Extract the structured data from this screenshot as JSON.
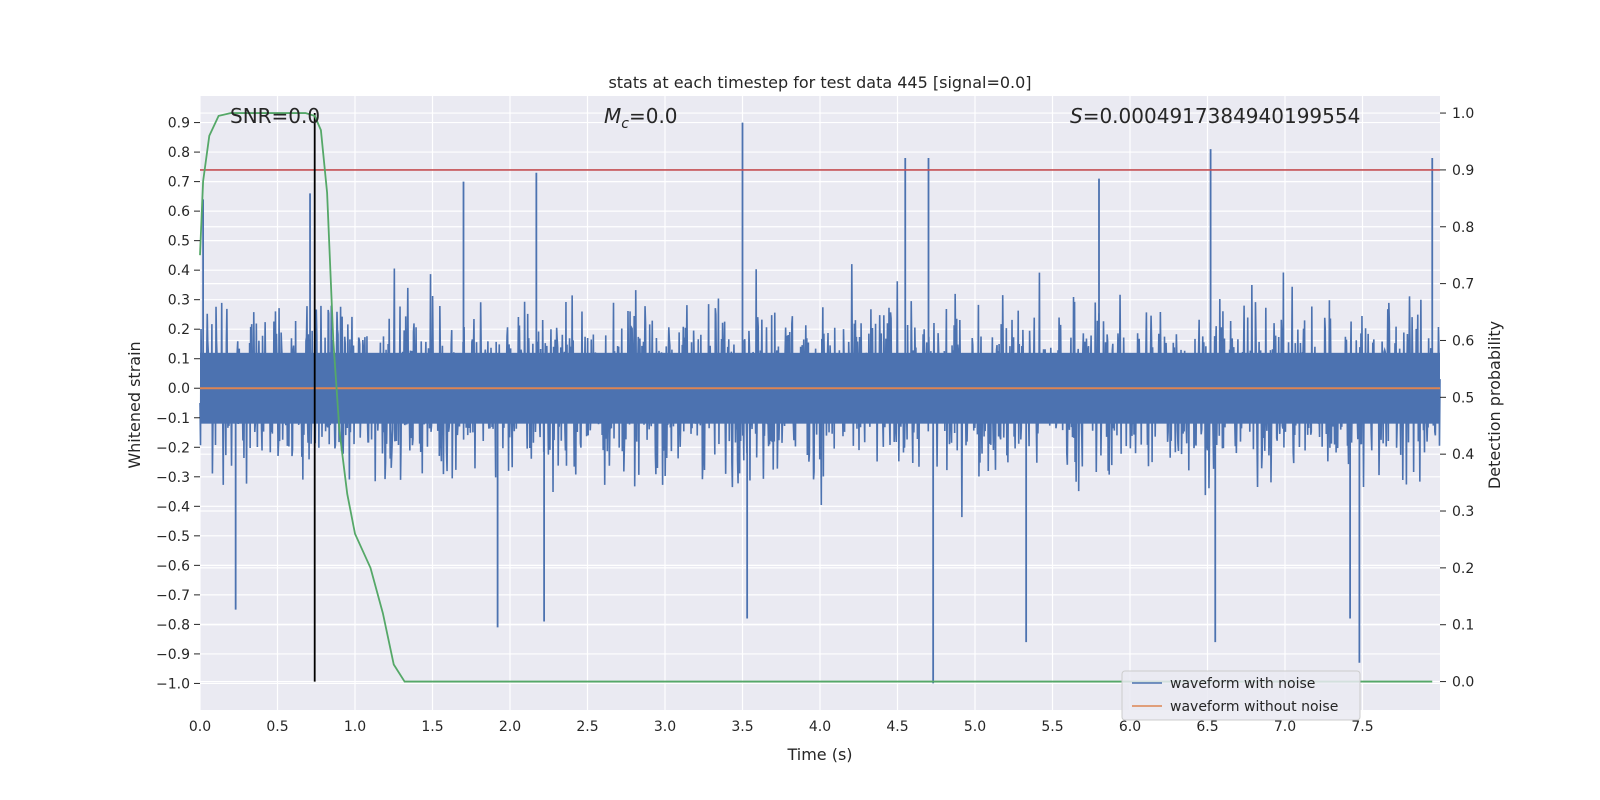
{
  "chart_data": {
    "type": "line",
    "title": "stats at each timestep for test data 445 [signal=0.0]",
    "xlabel": "Time (s)",
    "ylabel_left": "Whitened strain",
    "ylabel_right": "Detection probability",
    "xlim": [
      0.0,
      8.0
    ],
    "ylim_left": [
      -1.09,
      0.99
    ],
    "ylim_right": [
      -0.05,
      1.03
    ],
    "grid": true,
    "x_ticks": [
      "0.0",
      "0.5",
      "1.0",
      "1.5",
      "2.0",
      "2.5",
      "3.0",
      "3.5",
      "4.0",
      "4.5",
      "5.0",
      "5.5",
      "6.0",
      "6.5",
      "7.0",
      "7.5"
    ],
    "y_left_ticks": [
      "0.9",
      "0.8",
      "0.7",
      "0.6",
      "0.5",
      "0.4",
      "0.3",
      "0.2",
      "0.1",
      "0.0",
      "−0.1",
      "−0.2",
      "−0.3",
      "−0.4",
      "−0.5",
      "−0.6",
      "−0.7",
      "−0.8",
      "−0.9",
      "−1.0"
    ],
    "y_right_ticks": [
      "1.0",
      "0.9",
      "0.8",
      "0.7",
      "0.6",
      "0.5",
      "0.4",
      "0.3",
      "0.2",
      "0.1",
      "0.0"
    ],
    "annotations": {
      "snr_label": "SNR=0.0",
      "mc_symbol": "M",
      "mc_subscript": "c",
      "mc_value": "=0.0",
      "s_symbol": "S",
      "s_value": "=0.0004917384940199554"
    },
    "legend": {
      "position": "lower-right",
      "entries": [
        "waveform with noise",
        "waveform without noise"
      ]
    },
    "colors": {
      "noisy": "#4c72b0",
      "clean": "#dd8452",
      "probability": "#55a868",
      "threshold": "#c44e52",
      "marker": "#000000",
      "plot_bg": "#eaeaf2",
      "grid": "#ffffff"
    },
    "series": [
      {
        "name": "waveform with noise",
        "axis": "left",
        "kind": "dense noise, approx. gaussian, typical envelope ±0.3, spikes",
        "x_range": [
          0.0,
          8.0
        ],
        "upper_peaks": [
          {
            "x": 0.02,
            "y": 0.64
          },
          {
            "x": 0.71,
            "y": 0.66
          },
          {
            "x": 1.7,
            "y": 0.7
          },
          {
            "x": 2.17,
            "y": 0.73
          },
          {
            "x": 3.5,
            "y": 0.9
          },
          {
            "x": 4.55,
            "y": 0.78
          },
          {
            "x": 4.7,
            "y": 0.78
          },
          {
            "x": 5.8,
            "y": 0.71
          },
          {
            "x": 6.52,
            "y": 0.81
          },
          {
            "x": 7.95,
            "y": 0.78
          }
        ],
        "lower_peaks": [
          {
            "x": 0.23,
            "y": -0.75
          },
          {
            "x": 1.92,
            "y": -0.81
          },
          {
            "x": 2.22,
            "y": -0.79
          },
          {
            "x": 3.53,
            "y": -0.78
          },
          {
            "x": 4.73,
            "y": -1.0
          },
          {
            "x": 5.33,
            "y": -0.86
          },
          {
            "x": 6.55,
            "y": -0.86
          },
          {
            "x": 7.42,
            "y": -0.78
          },
          {
            "x": 7.48,
            "y": -0.93
          }
        ]
      },
      {
        "name": "waveform without noise",
        "axis": "left",
        "x": [
          0.0,
          8.0
        ],
        "y": [
          0.0,
          0.0
        ]
      },
      {
        "name": "detection probability",
        "axis": "right",
        "x": [
          0.0,
          0.02,
          0.06,
          0.12,
          0.2,
          0.3,
          0.5,
          0.68,
          0.74,
          0.78,
          0.82,
          0.86,
          0.9,
          0.95,
          1.0,
          1.05,
          1.1,
          1.18,
          1.25,
          1.32,
          1.4,
          2.0,
          3.0,
          4.0,
          5.0,
          6.0,
          7.0,
          7.95
        ],
        "y": [
          0.75,
          0.88,
          0.96,
          0.995,
          1.0,
          1.0,
          1.0,
          1.0,
          0.995,
          0.97,
          0.86,
          0.6,
          0.44,
          0.33,
          0.26,
          0.23,
          0.2,
          0.12,
          0.03,
          0.0,
          0.0,
          0.0,
          0.0,
          0.0,
          0.0,
          0.0,
          0.0,
          0.0
        ]
      },
      {
        "name": "threshold",
        "axis": "right",
        "x": [
          0.0,
          8.0
        ],
        "y": [
          0.9,
          0.9
        ]
      },
      {
        "name": "marker",
        "axis": "right",
        "kind": "vertical line",
        "x": [
          0.74,
          0.74
        ],
        "y": [
          0.0,
          1.0
        ]
      }
    ]
  }
}
